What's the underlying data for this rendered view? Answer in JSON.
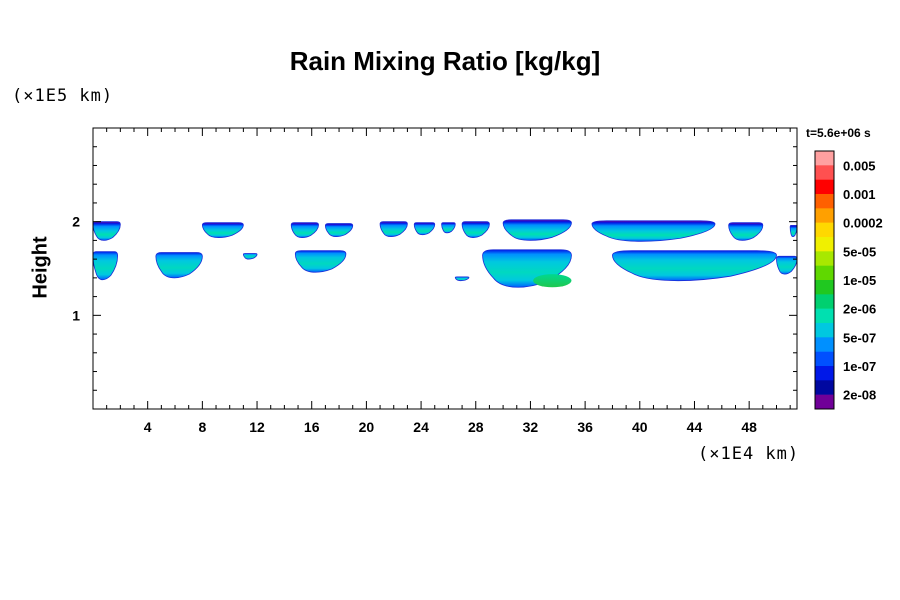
{
  "chart_data": {
    "type": "heatmap",
    "title": "Rain Mixing Ratio [kg/kg]",
    "ylabel": "Height",
    "xlabel": "",
    "x_unit": "(×1E4 km)",
    "y_unit": "(×1E5 km)",
    "time_label": "t=5.6e+06 s",
    "xlim": [
      0,
      51.5
    ],
    "ylim": [
      0,
      3
    ],
    "x_ticks": [
      4,
      8,
      12,
      16,
      20,
      24,
      28,
      32,
      36,
      40,
      44,
      48
    ],
    "x_tick_labels": [
      "4",
      "8",
      "12",
      "16",
      "20",
      "24",
      "28",
      "32",
      "36",
      "40",
      "44",
      "48"
    ],
    "x_minor_step": 1,
    "y_ticks": [
      1,
      2
    ],
    "y_tick_labels": [
      "1",
      "2"
    ],
    "y_minor_step": 0.2,
    "colorbar": {
      "labels": [
        "0.005",
        "0.001",
        "0.0002",
        "5e-05",
        "1e-05",
        "2e-06",
        "5e-07",
        "1e-07",
        "2e-08"
      ],
      "colors": [
        "#ffa0a0",
        "#ff5050",
        "#ff0000",
        "#ff6000",
        "#ffa000",
        "#ffd800",
        "#f0f000",
        "#a8e800",
        "#60d800",
        "#20c820",
        "#00d070",
        "#00e0b0",
        "#00c8e0",
        "#0090ff",
        "#0050ff",
        "#0018e8",
        "#0008a0",
        "#700098"
      ]
    },
    "features": [
      {
        "name": "upper-band-1",
        "x": [
          0,
          2
        ],
        "y": [
          1.8,
          2.0
        ]
      },
      {
        "name": "upper-band-2",
        "x": [
          8,
          11
        ],
        "y": [
          1.83,
          1.99
        ]
      },
      {
        "name": "upper-band-3",
        "x": [
          14.5,
          16.5
        ],
        "y": [
          1.83,
          1.99
        ]
      },
      {
        "name": "upper-band-4",
        "x": [
          17,
          19
        ],
        "y": [
          1.84,
          1.98
        ]
      },
      {
        "name": "upper-band-5",
        "x": [
          21,
          23
        ],
        "y": [
          1.84,
          2.0
        ]
      },
      {
        "name": "upper-band-6",
        "x": [
          23.5,
          25
        ],
        "y": [
          1.86,
          1.99
        ]
      },
      {
        "name": "upper-band-7",
        "x": [
          25.5,
          26.5
        ],
        "y": [
          1.88,
          1.99
        ]
      },
      {
        "name": "upper-band-8",
        "x": [
          27,
          29
        ],
        "y": [
          1.83,
          2.0
        ]
      },
      {
        "name": "upper-band-9",
        "x": [
          30,
          35
        ],
        "y": [
          1.8,
          2.02
        ]
      },
      {
        "name": "upper-band-10",
        "x": [
          36.5,
          45.5
        ],
        "y": [
          1.79,
          2.01
        ]
      },
      {
        "name": "upper-band-11",
        "x": [
          46.5,
          49
        ],
        "y": [
          1.8,
          1.99
        ]
      },
      {
        "name": "upper-band-12",
        "x": [
          51,
          51.5
        ],
        "y": [
          1.84,
          1.96
        ]
      },
      {
        "name": "lower-band-1",
        "x": [
          0,
          1.8
        ],
        "y": [
          1.38,
          1.68
        ]
      },
      {
        "name": "lower-band-2",
        "x": [
          4.6,
          8
        ],
        "y": [
          1.4,
          1.67
        ]
      },
      {
        "name": "lower-band-3",
        "x": [
          11,
          12
        ],
        "y": [
          1.6,
          1.66
        ]
      },
      {
        "name": "lower-band-4",
        "x": [
          14.8,
          18.5
        ],
        "y": [
          1.46,
          1.69
        ]
      },
      {
        "name": "lower-band-5",
        "x": [
          26.5,
          27.5
        ],
        "y": [
          1.37,
          1.41
        ]
      },
      {
        "name": "lower-band-6",
        "x": [
          28.5,
          35
        ],
        "y": [
          1.3,
          1.7
        ]
      },
      {
        "name": "lower-band-7",
        "x": [
          38,
          50
        ],
        "y": [
          1.37,
          1.69
        ]
      },
      {
        "name": "lower-band-8",
        "x": [
          50,
          51.5
        ],
        "y": [
          1.44,
          1.63
        ]
      }
    ]
  }
}
